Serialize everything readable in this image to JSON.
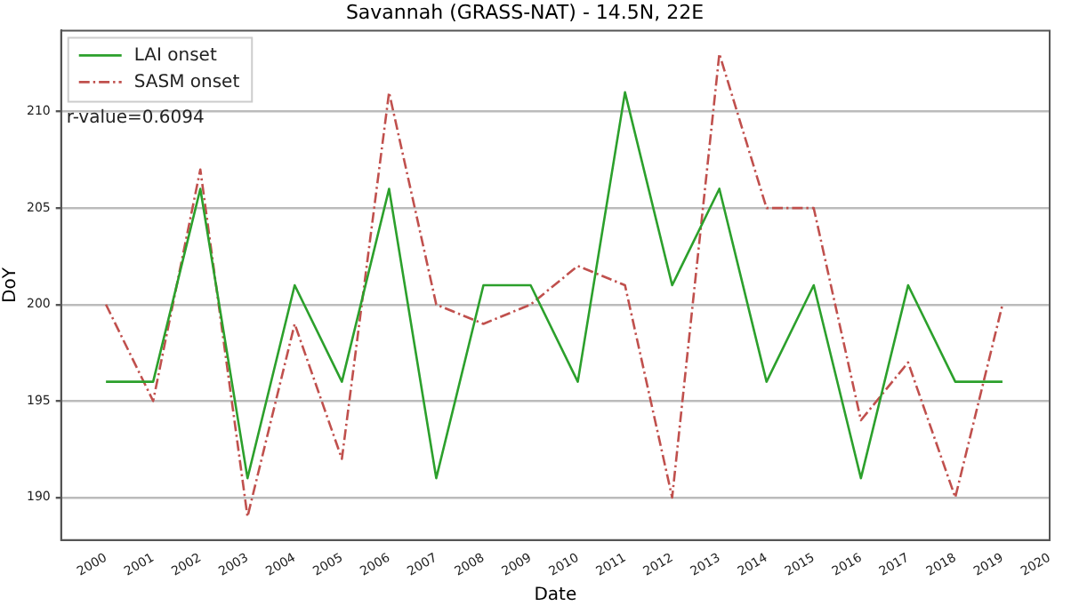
{
  "chart_data": {
    "type": "line",
    "title": "Savannah (GRASS-NAT) - 14.5N, 22E",
    "xlabel": "Date",
    "ylabel": "DoY",
    "x": [
      2000,
      2001,
      2002,
      2003,
      2004,
      2005,
      2006,
      2007,
      2008,
      2009,
      2010,
      2011,
      2012,
      2013,
      2014,
      2015,
      2016,
      2017,
      2018,
      2019
    ],
    "series": [
      {
        "name": "LAI onset",
        "color": "#2ca02c",
        "line_style": "solid",
        "values": [
          196,
          196,
          206,
          191,
          201,
          196,
          206,
          191,
          201,
          201,
          196,
          211,
          201,
          206,
          196,
          201,
          191,
          201,
          196,
          196
        ]
      },
      {
        "name": "SASM onset",
        "color": "#c0504d",
        "line_style": "dashdot",
        "values": [
          200,
          195,
          207,
          189,
          199,
          192,
          211,
          200,
          199,
          200,
          202,
          201,
          190,
          213,
          205,
          205,
          194,
          197,
          190,
          200
        ]
      }
    ],
    "xlim": [
      1999.05,
      2020
    ],
    "xticks": [
      2000,
      2001,
      2002,
      2003,
      2004,
      2005,
      2006,
      2007,
      2008,
      2009,
      2010,
      2011,
      2012,
      2013,
      2014,
      2015,
      2016,
      2017,
      2018,
      2019,
      2020
    ],
    "ylim": [
      187.8,
      214.2
    ],
    "yticks": [
      190,
      195,
      200,
      205,
      210
    ],
    "grid": "y",
    "legend": "top left",
    "marker": "none",
    "annotations": [
      "r-value=0.6094"
    ]
  }
}
